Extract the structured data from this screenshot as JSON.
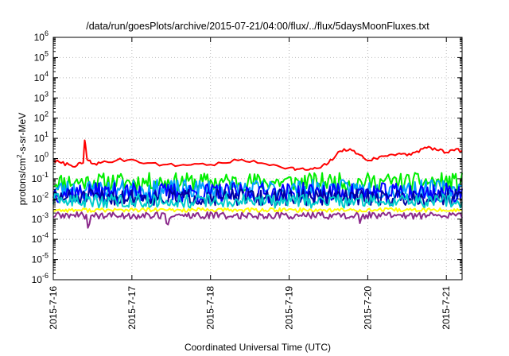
{
  "chart_data": {
    "type": "line",
    "title": "/data/run/goesPlots/archive/2015-07-21/04:00/flux/../flux/5daysMoonFluxes.txt",
    "xlabel": "Coordinated Universal Time (UTC)",
    "ylabel": "protons/cm2-s-sr-MeV",
    "ylabel_main": "protons/cm",
    "ylabel_sup": "2",
    "ylabel_rest": "-s-sr-MeV",
    "yscale": "log",
    "ylim_exp": [
      -6,
      6
    ],
    "xlim_days": [
      0,
      5.2
    ],
    "grid": true,
    "x_ticks": [
      {
        "label": "2015-7-16",
        "day": 0
      },
      {
        "label": "2015-7-17",
        "day": 1
      },
      {
        "label": "2015-7-18",
        "day": 2
      },
      {
        "label": "2015-7-19",
        "day": 3
      },
      {
        "label": "2015-7-20",
        "day": 4
      },
      {
        "label": "2015-7-21",
        "day": 5
      }
    ],
    "y_ticks": [
      -6,
      -5,
      -4,
      -3,
      -2,
      -1,
      0,
      1,
      2,
      3,
      4,
      5,
      6
    ],
    "series": [
      {
        "color": "#ff0000",
        "x_days": [
          0,
          0.1,
          0.2,
          0.3,
          0.38,
          0.4,
          0.43,
          0.5,
          0.6,
          0.8,
          1.0,
          1.2,
          1.4,
          1.6,
          1.8,
          2.0,
          2.2,
          2.4,
          2.6,
          2.8,
          3.0,
          3.1,
          3.2,
          3.3,
          3.4,
          3.5,
          3.6,
          3.7,
          3.8,
          3.9,
          4.0,
          4.1,
          4.2,
          4.3,
          4.4,
          4.5,
          4.6,
          4.7,
          4.8,
          4.9,
          5.0,
          5.1,
          5.2
        ],
        "y": [
          0.8,
          0.6,
          0.5,
          0.45,
          0.6,
          8.0,
          0.9,
          0.55,
          0.6,
          0.8,
          0.9,
          0.6,
          0.5,
          0.45,
          0.55,
          0.5,
          0.6,
          0.9,
          0.6,
          0.5,
          0.35,
          0.3,
          0.28,
          0.3,
          0.35,
          0.6,
          1.5,
          3.0,
          2.5,
          1.5,
          0.8,
          1.0,
          1.3,
          1.6,
          1.8,
          1.4,
          2.0,
          3.0,
          3.5,
          2.5,
          2.0,
          2.5,
          2.5
        ]
      },
      {
        "color": "#00ee00",
        "level": 0.07,
        "noise": 0.9,
        "seed": 11
      },
      {
        "color": "#00a0ff",
        "level": 0.03,
        "noise": 0.95,
        "seed": 23
      },
      {
        "color": "#0000ff",
        "level": 0.02,
        "noise": 1.0,
        "seed": 37
      },
      {
        "color": "#0000a0",
        "level": 0.012,
        "noise": 0.8,
        "seed": 51
      },
      {
        "color": "#00cccc",
        "level": 0.008,
        "noise": 0.7,
        "seed": 63
      },
      {
        "color": "#ffff00",
        "level": 0.0028,
        "noise": 0.2,
        "seed": 77
      },
      {
        "color": "#8b2a8b",
        "level": 0.0015,
        "noise": 0.35,
        "seed": 89,
        "spikes_down": [
          0.45,
          1.45,
          3.9
        ]
      }
    ]
  }
}
